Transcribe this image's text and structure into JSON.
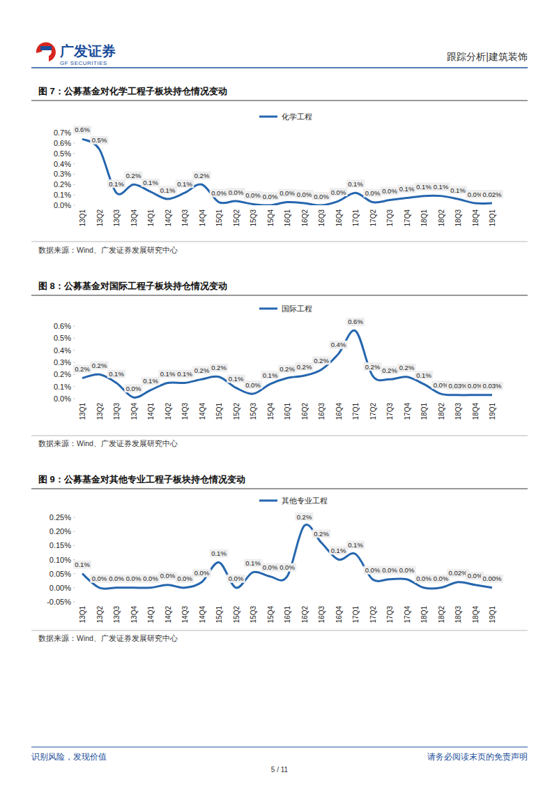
{
  "header": {
    "logo_text": "广发证券",
    "logo_subtext": "GF SECURITIES",
    "right_text": "跟踪分析|建筑装饰"
  },
  "chart_data": [
    {
      "type": "line",
      "title": "图 7：公募基金对化学工程子板块持仓情况变动",
      "categories": [
        "13Q1",
        "13Q2",
        "13Q3",
        "13Q4",
        "14Q1",
        "14Q2",
        "14Q3",
        "14Q4",
        "15Q1",
        "15Q2",
        "15Q3",
        "15Q4",
        "16Q1",
        "16Q2",
        "16Q3",
        "16Q4",
        "17Q1",
        "17Q2",
        "17Q3",
        "17Q4",
        "18Q1",
        "18Q2",
        "18Q3",
        "18Q4",
        "19Q1"
      ],
      "series": [
        {
          "name": "化学工程",
          "color": "#2566ae",
          "values": [
            0.64,
            0.54,
            0.12,
            0.2,
            0.13,
            0.06,
            0.12,
            0.2,
            0.03,
            0.04,
            0.01,
            0.0,
            0.03,
            0.02,
            0.0,
            0.04,
            0.12,
            0.03,
            0.05,
            0.07,
            0.09,
            0.09,
            0.06,
            0.02,
            0.02
          ],
          "value_labels": [
            "0.6%",
            "0.5%",
            "0.1%",
            "0.2%",
            "0.1%",
            "0.1%",
            "0.1%",
            "0.2%",
            "0.0%",
            "0.0%",
            "0.0%",
            "0.0%",
            "0.0%",
            "0.0%",
            "0.0%",
            "0.0%",
            "0.1%",
            "0.0%",
            "0.0%",
            "0.1%",
            "0.1%",
            "0.1%",
            "0.1%",
            "0.0%",
            "0.02%"
          ]
        }
      ],
      "ylim": [
        0,
        0.7
      ],
      "yticks": [
        {
          "value": 0,
          "label": "0.0%"
        },
        {
          "value": 0.1,
          "label": "0.1%"
        },
        {
          "value": 0.2,
          "label": "0.2%"
        },
        {
          "value": 0.3,
          "label": "0.3%"
        },
        {
          "value": 0.4,
          "label": "0.4%"
        },
        {
          "value": 0.5,
          "label": "0.5%"
        },
        {
          "value": 0.6,
          "label": "0.6%"
        },
        {
          "value": 0.7,
          "label": "0.7%"
        }
      ],
      "grid": false,
      "legend": "top",
      "data_labels": true,
      "line_style": "solid",
      "marker": "none",
      "source": "数据来源：Wind、广发证券发展研究中心"
    },
    {
      "type": "line",
      "title": "图 8：公募基金对国际工程子板块持仓情况变动",
      "categories": [
        "13Q1",
        "13Q2",
        "13Q3",
        "13Q4",
        "14Q1",
        "14Q2",
        "14Q3",
        "14Q4",
        "15Q1",
        "15Q2",
        "15Q3",
        "15Q4",
        "16Q1",
        "16Q2",
        "16Q3",
        "16Q4",
        "17Q1",
        "17Q2",
        "17Q3",
        "17Q4",
        "18Q1",
        "18Q2",
        "18Q3",
        "18Q4",
        "19Q1"
      ],
      "series": [
        {
          "name": "国际工程",
          "color": "#2566ae",
          "values": [
            0.17,
            0.2,
            0.13,
            0.01,
            0.07,
            0.13,
            0.13,
            0.16,
            0.18,
            0.09,
            0.04,
            0.12,
            0.17,
            0.19,
            0.24,
            0.37,
            0.56,
            0.19,
            0.16,
            0.18,
            0.12,
            0.04,
            0.03,
            0.03,
            0.03
          ],
          "value_labels": [
            "0.2%",
            "0.2%",
            "0.1%",
            "0.0%",
            "0.1%",
            "0.1%",
            "0.1%",
            "0.2%",
            "0.2%",
            "0.1%",
            "0.0%",
            "0.1%",
            "0.2%",
            "0.2%",
            "0.2%",
            "0.4%",
            "0.6%",
            "0.2%",
            "0.2%",
            "0.2%",
            "0.1%",
            "0.0%",
            "0.03%",
            "0.0%",
            "0.03%"
          ]
        }
      ],
      "ylim": [
        0,
        0.6
      ],
      "yticks": [
        {
          "value": 0,
          "label": "0.0%"
        },
        {
          "value": 0.1,
          "label": "0.1%"
        },
        {
          "value": 0.2,
          "label": "0.2%"
        },
        {
          "value": 0.3,
          "label": "0.3%"
        },
        {
          "value": 0.4,
          "label": "0.4%"
        },
        {
          "value": 0.5,
          "label": "0.5%"
        },
        {
          "value": 0.6,
          "label": "0.6%"
        }
      ],
      "grid": false,
      "legend": "top",
      "data_labels": true,
      "line_style": "solid",
      "marker": "none",
      "source": "数据来源：Wind、广发证券发展研究中心"
    },
    {
      "type": "line",
      "title": "图 9：公募基金对其他专业工程子板块持仓情况变动",
      "categories": [
        "13Q1",
        "13Q2",
        "13Q3",
        "13Q4",
        "14Q1",
        "14Q2",
        "14Q3",
        "14Q4",
        "15Q1",
        "15Q2",
        "15Q3",
        "15Q4",
        "16Q1",
        "16Q2",
        "16Q3",
        "16Q4",
        "17Q1",
        "17Q2",
        "17Q3",
        "17Q4",
        "18Q1",
        "18Q2",
        "18Q3",
        "18Q4",
        "19Q1"
      ],
      "series": [
        {
          "name": "其他专业工程",
          "color": "#2566ae",
          "values": [
            0.05,
            0.0,
            0.0,
            0.0,
            0.0,
            0.01,
            0.0,
            0.02,
            0.09,
            0.0,
            0.055,
            0.04,
            0.04,
            0.22,
            0.16,
            0.1,
            0.12,
            0.03,
            0.03,
            0.03,
            0.0,
            0.0,
            0.02,
            0.01,
            0.0
          ],
          "value_labels": [
            "0.1%",
            "0.0%",
            "0.0%",
            "0.0%",
            "0.0%",
            "0.0%",
            "0.0%",
            "0.0%",
            "0.1%",
            "0.0%",
            "0.1%",
            "0.0%",
            "0.0%",
            "0.2%",
            "0.2%",
            "0.1%",
            "0.1%",
            "0.0%",
            "0.0%",
            "0.0%",
            "0.0%",
            "0.0%",
            "0.02%",
            "0.0%",
            "0.00%"
          ]
        }
      ],
      "ylim": [
        -0.05,
        0.25
      ],
      "yticks": [
        {
          "value": -0.05,
          "label": "-0.05%"
        },
        {
          "value": 0,
          "label": "0.00%"
        },
        {
          "value": 0.05,
          "label": "0.05%"
        },
        {
          "value": 0.1,
          "label": "0.10%"
        },
        {
          "value": 0.15,
          "label": "0.15%"
        },
        {
          "value": 0.2,
          "label": "0.20%"
        },
        {
          "value": 0.25,
          "label": "0.25%"
        }
      ],
      "grid": false,
      "legend": "top",
      "data_labels": true,
      "line_style": "solid",
      "marker": "none",
      "source": "数据来源：Wind、广发证券发展研究中心"
    }
  ],
  "footer": {
    "left": "识别风险，发现价值",
    "center": "5 / 11",
    "right": "请务必阅读末页的免责声明"
  }
}
